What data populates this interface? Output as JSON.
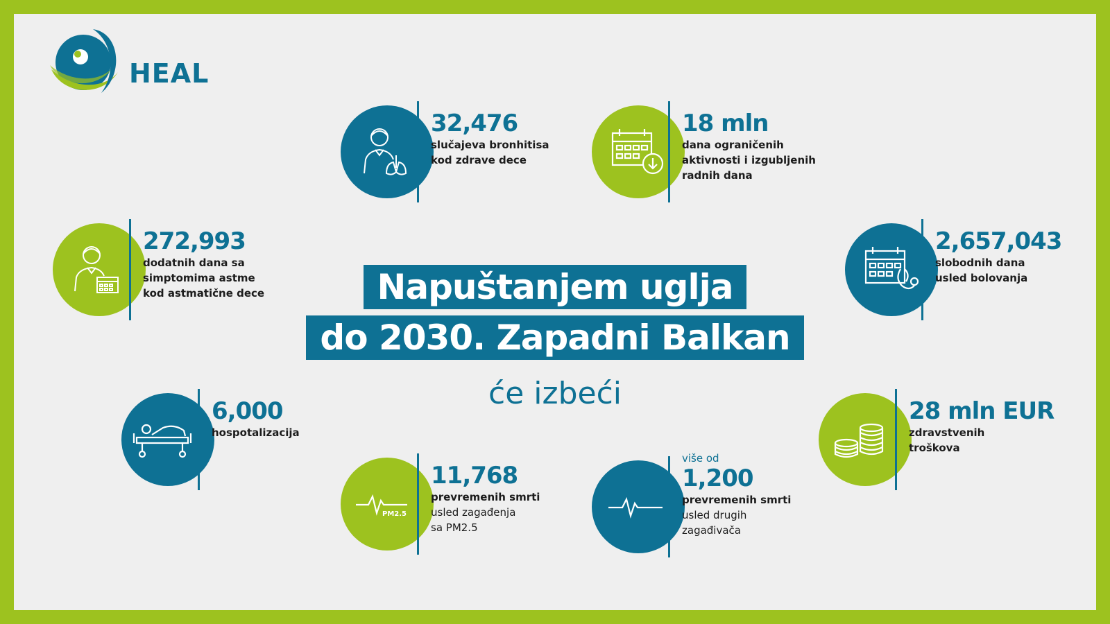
{
  "brand": {
    "name": "HEAL"
  },
  "headline": {
    "line1": "Napuštanjem uglja",
    "line2": "do 2030. Zapadni Balkan",
    "line3": "će izbeći"
  },
  "stats": {
    "bronchitis": {
      "value": "32,476",
      "line1": "slučajeva bronhitisa",
      "line2": "kod zdrave dece"
    },
    "restricted_days": {
      "value": "18 mln",
      "line1": "dana ograničenih",
      "line2": "aktivnosti i izgubljenih",
      "line3": "radnih dana"
    },
    "asthma": {
      "value": "272,993",
      "line1": "dodatnih dana sa",
      "line2": "simptomima astme",
      "line3": "kod astmatične dece"
    },
    "sick_leave": {
      "value": "2,657,043",
      "line1": "slobodnih dana",
      "line2": "usled bolovanja"
    },
    "hospital": {
      "value": "6,000",
      "line1": "hospotalizacija"
    },
    "costs": {
      "value": "28 mln EUR",
      "line1": "zdravstvenih",
      "line2": "troškova"
    },
    "pm25_deaths": {
      "value": "11,768",
      "line1": "prevremenih smrti",
      "line2": "usled zagađenja",
      "line3": "sa PM2.5",
      "icon_label": "PM2.5"
    },
    "other_deaths": {
      "pre": "više od",
      "value": "1,200",
      "line1": "prevremenih smrti",
      "line2": "usled drugih",
      "line3": "zagađivača"
    }
  },
  "colors": {
    "blue": "#0e7194",
    "green": "#9dc21f",
    "background": "#efefef"
  },
  "icons": [
    "child-lungs-icon",
    "calendar-download-icon",
    "child-calendar-icon",
    "calendar-stethoscope-icon",
    "hospital-bed-icon",
    "coins-icon",
    "heartbeat-pm25-icon",
    "heartbeat-icon"
  ]
}
